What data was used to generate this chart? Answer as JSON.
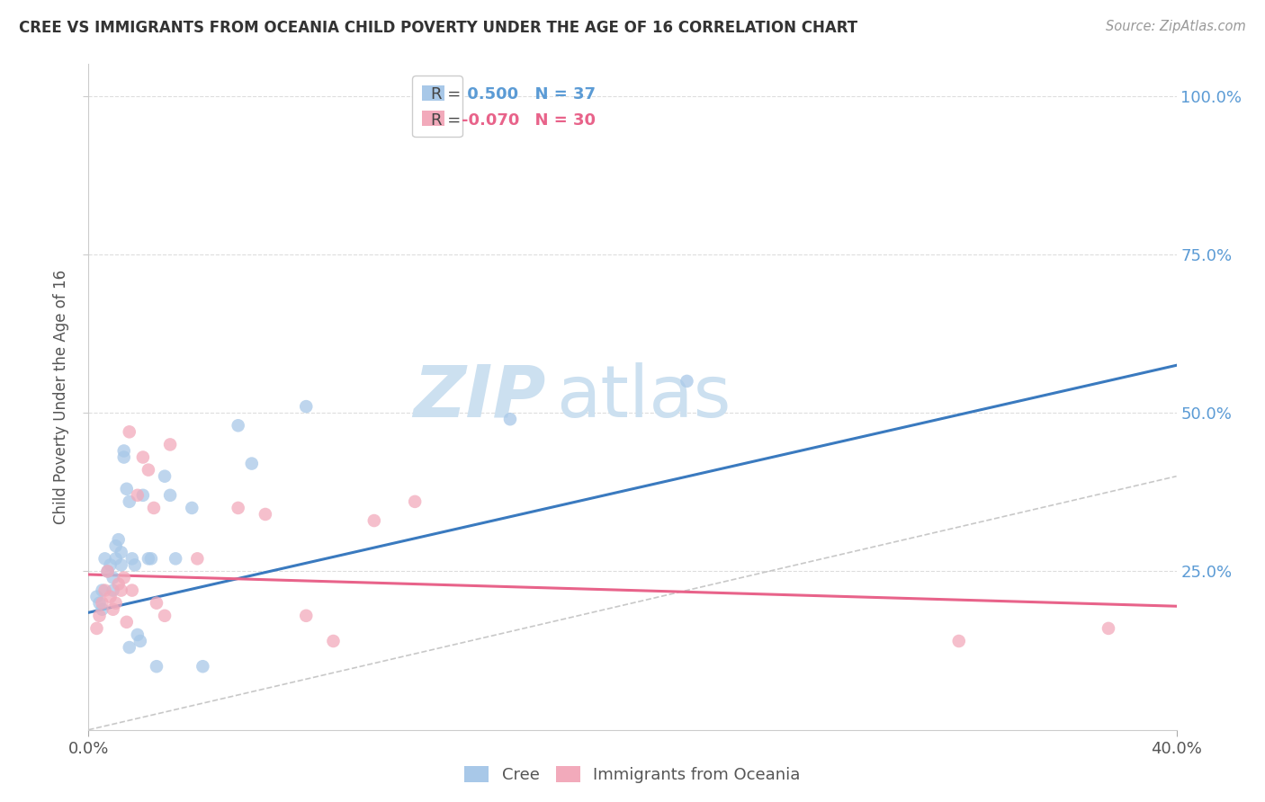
{
  "title": "CREE VS IMMIGRANTS FROM OCEANIA CHILD POVERTY UNDER THE AGE OF 16 CORRELATION CHART",
  "source": "Source: ZipAtlas.com",
  "ylabel": "Child Poverty Under the Age of 16",
  "xlim": [
    0.0,
    0.4
  ],
  "ylim": [
    0.0,
    1.05
  ],
  "ytick_vals": [
    0.25,
    0.5,
    0.75,
    1.0
  ],
  "ytick_labels": [
    "25.0%",
    "50.0%",
    "75.0%",
    "100.0%"
  ],
  "xticks": [
    0.0,
    0.4
  ],
  "xtick_labels": [
    "0.0%",
    "40.0%"
  ],
  "cree_scatter_x": [
    0.003,
    0.004,
    0.005,
    0.005,
    0.006,
    0.007,
    0.008,
    0.009,
    0.009,
    0.01,
    0.01,
    0.011,
    0.012,
    0.012,
    0.013,
    0.013,
    0.014,
    0.015,
    0.015,
    0.016,
    0.017,
    0.018,
    0.019,
    0.02,
    0.022,
    0.023,
    0.025,
    0.028,
    0.03,
    0.032,
    0.038,
    0.042,
    0.055,
    0.06,
    0.08,
    0.155,
    0.22
  ],
  "cree_scatter_y": [
    0.21,
    0.2,
    0.22,
    0.19,
    0.27,
    0.25,
    0.26,
    0.24,
    0.22,
    0.29,
    0.27,
    0.3,
    0.28,
    0.26,
    0.43,
    0.44,
    0.38,
    0.13,
    0.36,
    0.27,
    0.26,
    0.15,
    0.14,
    0.37,
    0.27,
    0.27,
    0.1,
    0.4,
    0.37,
    0.27,
    0.35,
    0.1,
    0.48,
    0.42,
    0.51,
    0.49,
    0.55
  ],
  "oceania_scatter_x": [
    0.003,
    0.004,
    0.005,
    0.006,
    0.007,
    0.008,
    0.009,
    0.01,
    0.011,
    0.012,
    0.013,
    0.014,
    0.015,
    0.016,
    0.018,
    0.02,
    0.022,
    0.024,
    0.025,
    0.028,
    0.03,
    0.04,
    0.055,
    0.065,
    0.08,
    0.09,
    0.105,
    0.12,
    0.32,
    0.375
  ],
  "oceania_scatter_y": [
    0.16,
    0.18,
    0.2,
    0.22,
    0.25,
    0.21,
    0.19,
    0.2,
    0.23,
    0.22,
    0.24,
    0.17,
    0.47,
    0.22,
    0.37,
    0.43,
    0.41,
    0.35,
    0.2,
    0.18,
    0.45,
    0.27,
    0.35,
    0.34,
    0.18,
    0.14,
    0.33,
    0.36,
    0.14,
    0.16
  ],
  "cree_line_x": [
    0.0,
    0.4
  ],
  "cree_line_y": [
    0.185,
    0.575
  ],
  "oceania_line_x": [
    0.0,
    0.4
  ],
  "oceania_line_y": [
    0.245,
    0.195
  ],
  "diagonal_line_x": [
    0.0,
    0.4
  ],
  "diagonal_line_y": [
    0.0,
    0.4
  ],
  "scatter_size": 110,
  "cree_color": "#a8c8e8",
  "oceania_color": "#f2aabb",
  "cree_line_color": "#3a7abf",
  "oceania_line_color": "#e8638a",
  "diagonal_color": "#bbbbbb",
  "watermark_zip": "ZIP",
  "watermark_atlas": "atlas",
  "watermark_color_zip": "#cce0f0",
  "watermark_color_atlas": "#cce0f0",
  "background_color": "#ffffff",
  "grid_color": "#dddddd",
  "legend_r1_prefix": "R = ",
  "legend_r1_value": " 0.500",
  "legend_r1_n": "N = 37",
  "legend_r1_color": "#5b9bd5",
  "legend_r2_prefix": "R = ",
  "legend_r2_value": "-0.070",
  "legend_r2_n": "N = 30",
  "legend_r2_color": "#e8638a"
}
